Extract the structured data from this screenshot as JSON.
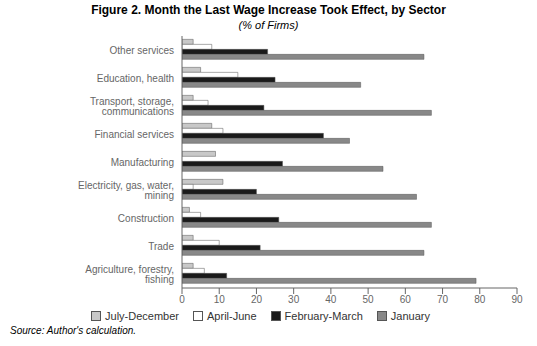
{
  "chart_data": {
    "type": "bar",
    "orientation": "horizontal",
    "title": "Figure 2. Month the Last Wage Increase Took Effect, by Sector",
    "subtitle": "(% of Firms)",
    "categories": [
      "Agriculture, forestry, fishing",
      "Trade",
      "Construction",
      "Electricity, gas, water, mining",
      "Manufacturing",
      "Financial services",
      "Transport, storage, communications",
      "Education, health",
      "Other services"
    ],
    "series": [
      {
        "name": "July-December",
        "color": "#c8c8c8",
        "values": [
          3,
          3,
          2,
          11,
          9,
          8,
          3,
          5,
          3
        ]
      },
      {
        "name": "April-June",
        "color": "#ffffff",
        "values": [
          6,
          10,
          5,
          3,
          0,
          11,
          7,
          15,
          8
        ]
      },
      {
        "name": "February-March",
        "color": "#1a1a1a",
        "values": [
          12,
          21,
          26,
          20,
          27,
          38,
          22,
          25,
          23
        ]
      },
      {
        "name": "January",
        "color": "#888888",
        "values": [
          79,
          65,
          67,
          63,
          54,
          45,
          67,
          48,
          65
        ]
      }
    ],
    "xlim": [
      0,
      90
    ],
    "xticks": [
      0,
      10,
      20,
      30,
      40,
      50,
      60,
      70,
      80,
      90
    ],
    "grid": false,
    "legend": "bottom",
    "annotations": [
      "Source: Author's calculation."
    ]
  }
}
